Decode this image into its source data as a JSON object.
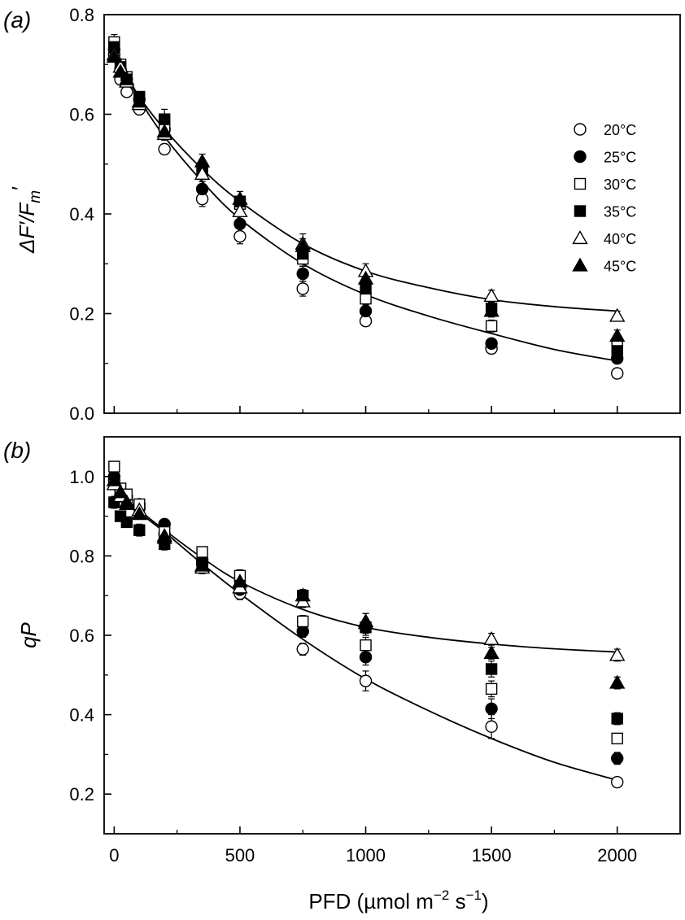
{
  "chart_data": [
    {
      "type": "scatter",
      "panel_label": "(a)",
      "ylabel": "ΔF′/Fm′",
      "ylabel_parts": {
        "main": "ΔF′/F",
        "sub": "m",
        "prime": "′"
      },
      "xlim": [
        -40,
        2250
      ],
      "ylim": [
        0,
        0.8
      ],
      "y_ticks": [
        "0.0",
        "0.2",
        "0.4",
        "0.6",
        "0.8"
      ],
      "x": [
        0,
        25,
        50,
        100,
        200,
        350,
        500,
        750,
        1000,
        1500,
        2000
      ],
      "series": [
        {
          "name": "20°C",
          "marker": "circle-open",
          "values": [
            0.72,
            0.67,
            0.645,
            0.61,
            0.53,
            0.43,
            0.355,
            0.25,
            0.185,
            0.13,
            0.08
          ],
          "errors": [
            0.01,
            0.01,
            0.01,
            0.01,
            0.01,
            0.015,
            0.015,
            0.015,
            0.01,
            0.01,
            0.01
          ]
        },
        {
          "name": "25°C",
          "marker": "circle-filled",
          "values": [
            0.73,
            0.69,
            0.67,
            0.63,
            0.57,
            0.45,
            0.38,
            0.28,
            0.205,
            0.14,
            0.11
          ],
          "errors": [
            0.01,
            0.01,
            0.01,
            0.01,
            0.012,
            0.015,
            0.015,
            0.015,
            0.012,
            0.01,
            0.01
          ]
        },
        {
          "name": "30°C",
          "marker": "square-open",
          "values": [
            0.745,
            0.7,
            0.675,
            0.635,
            0.575,
            0.485,
            0.42,
            0.31,
            0.23,
            0.175,
            0.135
          ],
          "errors": [
            0.015,
            0.01,
            0.01,
            0.01,
            0.015,
            0.015,
            0.015,
            0.015,
            0.012,
            0.012,
            0.01
          ]
        },
        {
          "name": "35°C",
          "marker": "square-filled",
          "values": [
            0.735,
            0.695,
            0.67,
            0.635,
            0.59,
            0.49,
            0.425,
            0.32,
            0.25,
            0.21,
            0.125
          ],
          "errors": [
            0.015,
            0.01,
            0.01,
            0.01,
            0.02,
            0.015,
            0.02,
            0.02,
            0.015,
            0.012,
            0.01
          ]
        },
        {
          "name": "40°C",
          "marker": "triangle-open",
          "values": [
            0.72,
            0.695,
            0.665,
            0.62,
            0.56,
            0.48,
            0.405,
            0.34,
            0.285,
            0.235,
            0.195
          ],
          "errors": [
            0.01,
            0.01,
            0.01,
            0.01,
            0.012,
            0.015,
            0.015,
            0.02,
            0.015,
            0.012,
            0.01
          ]
        },
        {
          "name": "45°C",
          "marker": "triangle-filled",
          "values": [
            0.715,
            0.685,
            0.67,
            0.625,
            0.565,
            0.505,
            0.43,
            0.335,
            0.27,
            0.205,
            0.155
          ],
          "errors": [
            0.01,
            0.01,
            0.01,
            0.01,
            0.012,
            0.015,
            0.015,
            0.015,
            0.015,
            0.012,
            0.012
          ]
        }
      ],
      "fit_curves": [
        {
          "x": [
            0,
            100,
            200,
            350,
            500,
            750,
            1000,
            1250,
            1500,
            1750,
            2000
          ],
          "values": [
            0.72,
            0.63,
            0.555,
            0.465,
            0.39,
            0.3,
            0.238,
            0.195,
            0.16,
            0.128,
            0.105
          ]
        },
        {
          "x": [
            0,
            100,
            200,
            350,
            500,
            750,
            1000,
            1250,
            1500,
            1750,
            2000
          ],
          "values": [
            0.72,
            0.635,
            0.57,
            0.49,
            0.425,
            0.34,
            0.285,
            0.252,
            0.228,
            0.214,
            0.205
          ]
        }
      ],
      "legend_position": "right"
    },
    {
      "type": "scatter",
      "panel_label": "(b)",
      "ylabel": "qP",
      "xlabel": "PFD (µmol m⁻² s⁻¹)",
      "xlabel_parts": {
        "a": "PFD (µmol m",
        "sup1": "−2",
        "b": " s",
        "sup2": "−1",
        "c": ")"
      },
      "xlim": [
        -40,
        2250
      ],
      "ylim": [
        0.1,
        1.1
      ],
      "x_ticks": [
        "0",
        "500",
        "1000",
        "1500",
        "2000"
      ],
      "y_ticks": [
        "0.2",
        "0.4",
        "0.6",
        "0.8",
        "1.0"
      ],
      "x": [
        0,
        25,
        50,
        100,
        200,
        350,
        500,
        750,
        1000,
        1500,
        2000
      ],
      "series": [
        {
          "name": "20°C",
          "marker": "circle-open",
          "values": [
            0.99,
            0.955,
            0.94,
            0.92,
            0.855,
            0.78,
            0.705,
            0.565,
            0.485,
            0.37,
            0.23
          ],
          "errors": [
            0.01,
            0.01,
            0.01,
            0.01,
            0.01,
            0.015,
            0.015,
            0.015,
            0.025,
            0.03,
            0.01
          ]
        },
        {
          "name": "25°C",
          "marker": "circle-filled",
          "values": [
            1.0,
            0.965,
            0.95,
            0.93,
            0.88,
            0.79,
            0.715,
            0.61,
            0.545,
            0.415,
            0.29
          ],
          "errors": [
            0.015,
            0.01,
            0.01,
            0.01,
            0.01,
            0.015,
            0.015,
            0.015,
            0.02,
            0.025,
            0.015
          ]
        },
        {
          "name": "30°C",
          "marker": "square-open",
          "values": [
            1.025,
            0.97,
            0.955,
            0.93,
            0.86,
            0.81,
            0.75,
            0.635,
            0.575,
            0.465,
            0.34
          ],
          "errors": [
            0.01,
            0.01,
            0.01,
            0.01,
            0.01,
            0.01,
            0.015,
            0.015,
            0.02,
            0.02,
            0.01
          ]
        },
        {
          "name": "35°C",
          "marker": "square-filled",
          "values": [
            0.935,
            0.9,
            0.885,
            0.865,
            0.83,
            0.775,
            0.725,
            0.7,
            0.62,
            0.515,
            0.39
          ],
          "errors": [
            0.015,
            0.01,
            0.01,
            0.015,
            0.015,
            0.015,
            0.015,
            0.015,
            0.02,
            0.02,
            0.015
          ]
        },
        {
          "name": "40°C",
          "marker": "triangle-open",
          "values": [
            0.98,
            0.95,
            0.935,
            0.915,
            0.85,
            0.77,
            0.72,
            0.685,
            0.635,
            0.59,
            0.55
          ],
          "errors": [
            0.01,
            0.01,
            0.01,
            0.01,
            0.01,
            0.015,
            0.015,
            0.015,
            0.02,
            0.015,
            0.015
          ]
        },
        {
          "name": "45°C",
          "marker": "triangle-filled",
          "values": [
            0.99,
            0.96,
            0.93,
            0.905,
            0.845,
            0.775,
            0.735,
            0.7,
            0.63,
            0.555,
            0.48
          ],
          "errors": [
            0.01,
            0.01,
            0.01,
            0.01,
            0.01,
            0.015,
            0.015,
            0.015,
            0.025,
            0.015,
            0.015
          ]
        }
      ],
      "fit_curves": [
        {
          "x": [
            0,
            100,
            200,
            350,
            500,
            750,
            1000,
            1250,
            1500,
            1750,
            2000
          ],
          "values": [
            0.97,
            0.91,
            0.86,
            0.78,
            0.705,
            0.59,
            0.49,
            0.41,
            0.34,
            0.28,
            0.235
          ]
        },
        {
          "x": [
            0,
            100,
            200,
            350,
            500,
            750,
            1000,
            1250,
            1500,
            1750,
            2000
          ],
          "values": [
            0.97,
            0.915,
            0.865,
            0.795,
            0.735,
            0.665,
            0.62,
            0.595,
            0.578,
            0.566,
            0.558
          ]
        }
      ]
    }
  ]
}
